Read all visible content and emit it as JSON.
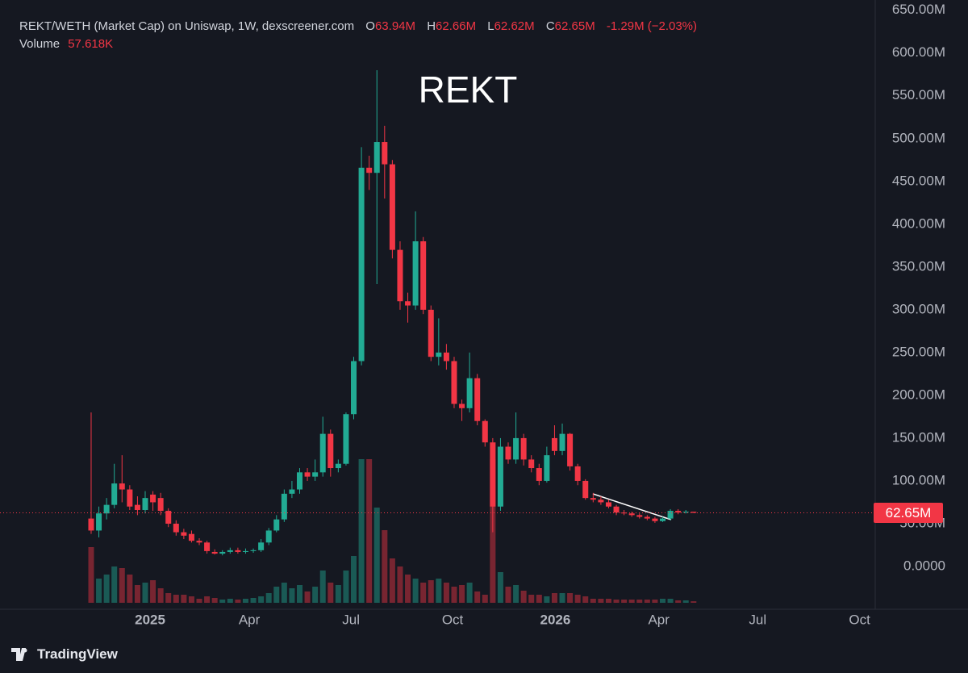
{
  "chart_data": {
    "type": "candlestick",
    "title": "REKT",
    "header": {
      "symbol": "REKT/WETH (Market Cap) on Uniswap, 1W, dexscreener.com",
      "ohlc": [
        {
          "key": "O",
          "text": "63.94M"
        },
        {
          "key": "H",
          "text": "62.66M"
        },
        {
          "key": "L",
          "text": "62.62M"
        },
        {
          "key": "C",
          "text": "62.65M"
        }
      ],
      "change": "-1.29M (−2.03%)",
      "volume_label": "Volume",
      "volume_text": "57.618K"
    },
    "last_price_label": "62.65M",
    "brand": "TradingView",
    "up_color": "#22ab94",
    "down_color": "#f23645",
    "grid": false,
    "open": [
      56,
      42,
      62,
      72,
      97,
      90,
      72,
      66,
      84,
      80,
      65,
      50,
      40,
      38,
      30,
      28,
      17,
      15,
      17,
      19,
      17,
      18,
      19,
      28,
      42,
      55,
      85,
      90,
      110,
      105,
      110,
      155,
      115,
      120,
      178,
      240,
      466,
      460,
      496,
      470,
      370,
      310,
      305,
      380,
      300,
      245,
      250,
      240,
      190,
      185,
      220,
      170,
      145,
      70,
      140,
      125,
      150,
      125,
      115,
      100,
      150,
      135,
      155,
      117,
      100,
      80,
      78,
      75,
      70,
      63,
      62,
      60,
      58,
      56,
      53,
      56,
      65,
      63,
      63.94
    ],
    "high": [
      180,
      70,
      80,
      120,
      130,
      95,
      82,
      88,
      88,
      86,
      68,
      54,
      44,
      42,
      33,
      30,
      20,
      19,
      22,
      22,
      21,
      21,
      32,
      45,
      60,
      90,
      100,
      115,
      115,
      125,
      175,
      160,
      125,
      180,
      245,
      490,
      480,
      580,
      515,
      475,
      380,
      320,
      415,
      385,
      305,
      290,
      260,
      245,
      195,
      250,
      225,
      172,
      150,
      150,
      145,
      180,
      155,
      130,
      120,
      140,
      165,
      167,
      156,
      120,
      102,
      86,
      82,
      78,
      72,
      66,
      64,
      62,
      60,
      58,
      58,
      67,
      67,
      66,
      62.66
    ],
    "low": [
      38,
      34,
      55,
      68,
      75,
      66,
      60,
      62,
      65,
      60,
      46,
      36,
      32,
      28,
      25,
      15,
      14,
      13,
      15,
      15,
      15,
      16,
      17,
      25,
      40,
      52,
      80,
      85,
      100,
      100,
      105,
      105,
      110,
      118,
      172,
      235,
      440,
      330,
      430,
      360,
      300,
      285,
      300,
      295,
      240,
      235,
      230,
      185,
      170,
      180,
      165,
      140,
      40,
      65,
      120,
      120,
      118,
      110,
      95,
      98,
      130,
      130,
      112,
      95,
      78,
      75,
      72,
      68,
      60,
      60,
      58,
      56,
      54,
      51,
      52,
      54,
      61,
      62,
      62.62
    ],
    "close": [
      42,
      62,
      72,
      97,
      90,
      70,
      66,
      80,
      75,
      65,
      50,
      40,
      36,
      30,
      28,
      18,
      15,
      17,
      19,
      17,
      18,
      19,
      28,
      42,
      55,
      85,
      90,
      110,
      105,
      110,
      155,
      115,
      120,
      178,
      240,
      466,
      460,
      496,
      470,
      370,
      310,
      305,
      380,
      300,
      245,
      250,
      240,
      190,
      185,
      220,
      170,
      145,
      70,
      140,
      125,
      150,
      125,
      115,
      100,
      130,
      135,
      155,
      117,
      100,
      80,
      78,
      75,
      70,
      63,
      62,
      60,
      58,
      56,
      53,
      56,
      65,
      63,
      64,
      62.65
    ],
    "volume": [
      2070,
      900,
      1050,
      1350,
      1290,
      1050,
      660,
      750,
      840,
      540,
      360,
      300,
      300,
      240,
      150,
      240,
      180,
      120,
      150,
      120,
      150,
      180,
      240,
      360,
      600,
      750,
      540,
      660,
      420,
      600,
      1200,
      750,
      660,
      1200,
      1740,
      5340,
      5340,
      3540,
      2700,
      1650,
      1350,
      1050,
      900,
      750,
      840,
      900,
      750,
      600,
      660,
      750,
      420,
      300,
      5340,
      1140,
      600,
      660,
      450,
      300,
      300,
      240,
      360,
      360,
      360,
      300,
      240,
      150,
      150,
      150,
      120,
      120,
      120,
      120,
      120,
      120,
      150,
      150,
      90,
      90,
      57.618
    ],
    "ylim": [
      -50,
      662
    ],
    "yticks": [
      {
        "value": 0,
        "label": "0.0000"
      },
      {
        "value": 50,
        "label": "50.00M"
      },
      {
        "value": 100,
        "label": "100.00M"
      },
      {
        "value": 150,
        "label": "150.00M"
      },
      {
        "value": 200,
        "label": "200.00M"
      },
      {
        "value": 250,
        "label": "250.00M"
      },
      {
        "value": 300,
        "label": "300.00M"
      },
      {
        "value": 350,
        "label": "350.00M"
      },
      {
        "value": 400,
        "label": "400.00M"
      },
      {
        "value": 450,
        "label": "450.00M"
      },
      {
        "value": 500,
        "label": "500.00M"
      },
      {
        "value": 550,
        "label": "550.00M"
      },
      {
        "value": 600,
        "label": "600.00M"
      },
      {
        "value": 650,
        "label": "650.00M"
      }
    ],
    "xlim": [
      -11.8,
      101
    ],
    "xticks": [
      {
        "value": 7.63,
        "label": "2025"
      },
      {
        "value": 20.48,
        "label": "Apr"
      },
      {
        "value": 33.65,
        "label": "Jul"
      },
      {
        "value": 46.8,
        "label": "Oct"
      },
      {
        "value": 60.1,
        "label": "2026"
      },
      {
        "value": 73.5,
        "label": "Apr"
      },
      {
        "value": 86.3,
        "label": "Jul"
      },
      {
        "value": 99.5,
        "label": "Oct"
      }
    ]
  }
}
